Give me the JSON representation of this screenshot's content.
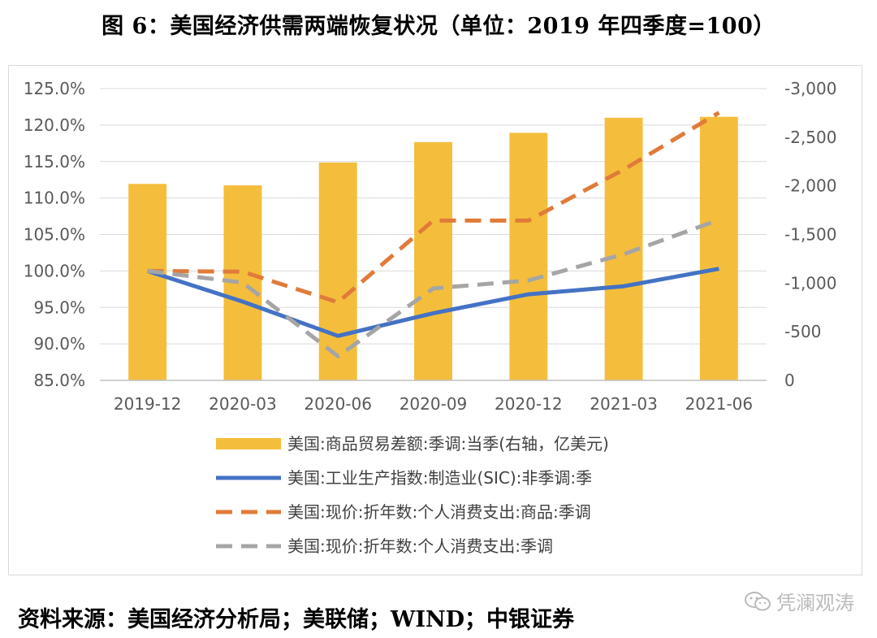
{
  "title": "图 6：美国经济供需两端恢复状况（单位：2019 年四季度=100）",
  "source": "资料来源：美国经济分析局；美联储；WIND；中银证券",
  "watermark": "凭澜观涛",
  "chart_data": {
    "type": "bar",
    "categories": [
      "2019-12",
      "2020-03",
      "2020-06",
      "2020-09",
      "2020-12",
      "2021-03",
      "2021-06"
    ],
    "y_left": {
      "ticks": [
        "85.0%",
        "90.0%",
        "95.0%",
        "100.0%",
        "105.0%",
        "110.0%",
        "115.0%",
        "120.0%",
        "125.0%"
      ],
      "ylim": [
        85,
        125
      ]
    },
    "y_right": {
      "ticks": [
        "0",
        "-500",
        "-1,000",
        "-1,500",
        "-2,000",
        "-2,500",
        "-3,000"
      ],
      "ylim": [
        0,
        -3000
      ]
    },
    "grid": true,
    "legend_position": "bottom",
    "series": [
      {
        "name": "美国:商品贸易差额:季调:当季(右轴，亿美元)",
        "type": "bar",
        "axis": "right",
        "color": "#F4BE3C",
        "values": [
          -2020,
          -2005,
          -2240,
          -2450,
          -2545,
          -2700,
          -2710
        ]
      },
      {
        "name": "美国:工业生产指数:制造业(SIC):非季调:季",
        "type": "line",
        "axis": "left",
        "color": "#4472C4",
        "dash": "solid",
        "values": [
          100.0,
          95.8,
          91.1,
          94.2,
          96.8,
          97.9,
          100.3
        ]
      },
      {
        "name": "美国:现价:折年数:个人消费支出:商品:季调",
        "type": "line",
        "axis": "left",
        "color": "#E07B39",
        "dash": "dashed",
        "values": [
          100.0,
          99.9,
          95.7,
          106.9,
          106.9,
          113.9,
          121.7
        ]
      },
      {
        "name": "美国:现价:折年数:个人消费支出:季调",
        "type": "line",
        "axis": "left",
        "color": "#A5A5A5",
        "dash": "dashed",
        "values": [
          100.0,
          98.4,
          88.3,
          97.6,
          98.7,
          102.3,
          107.0
        ]
      }
    ]
  }
}
